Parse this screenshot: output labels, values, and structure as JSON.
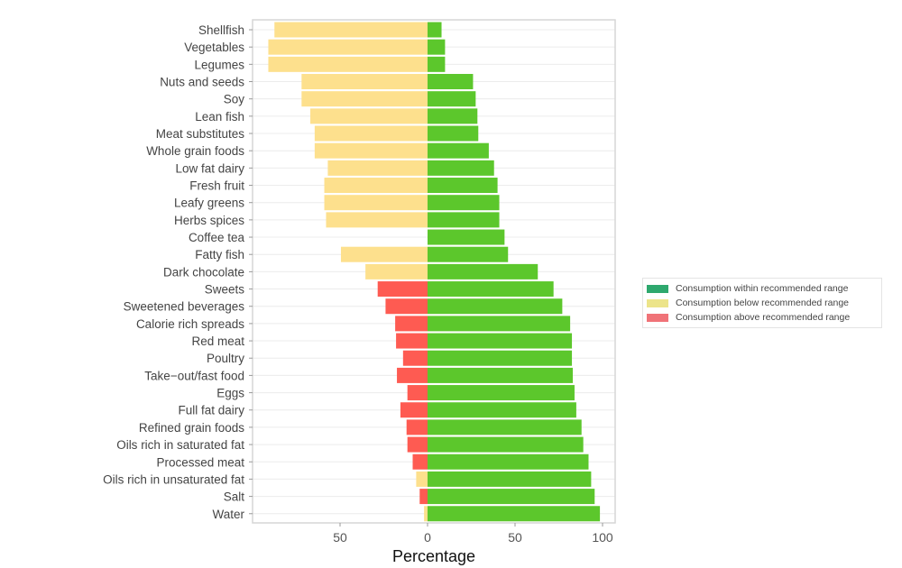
{
  "chart_data": {
    "type": "bar",
    "orientation": "horizontal",
    "stacking": "diverging",
    "title": "",
    "xlabel": "Percentage",
    "ylabel": "",
    "xlim": [
      -100,
      100
    ],
    "x_ticks": [
      {
        "value": -50,
        "label": "50"
      },
      {
        "value": 0,
        "label": "0"
      },
      {
        "value": 50,
        "label": "50"
      },
      {
        "value": 100,
        "label": "100"
      }
    ],
    "grid": "horizontal",
    "legend_position": "right",
    "categories": [
      "Shellfish",
      "Vegetables",
      "Legumes",
      "Nuts and seeds",
      "Soy",
      "Lean fish",
      "Meat substitutes",
      "Whole grain foods",
      "Low fat dairy",
      "Fresh fruit",
      "Leafy greens",
      "Herbs spices",
      "Coffee tea",
      "Fatty fish",
      "Dark chocolate",
      "Sweets",
      "Sweetened beverages",
      "Calorie rich spreads",
      "Red meat",
      "Poultry",
      "Take−out/fast food",
      "Eggs",
      "Full fat dairy",
      "Refined grain foods",
      "Oils rich in saturated fat",
      "Processed meat",
      "Oils rich in unsaturated fat",
      "Salt",
      "Water"
    ],
    "series": [
      {
        "name": "Consumption within recommended range",
        "color": "#5cc72c",
        "legend_color": "#2ea86e",
        "side": "right",
        "values": [
          8,
          10,
          10,
          26,
          27.5,
          28.5,
          29,
          35,
          38,
          40,
          41,
          41,
          44,
          46,
          63,
          72,
          77,
          81.5,
          82.5,
          82.5,
          83,
          84,
          85,
          88,
          89,
          92,
          93.5,
          95.5,
          98.5
        ]
      },
      {
        "name": "Consumption below recommended range",
        "color": "#fde08d",
        "legend_color": "#ece48a",
        "side": "left",
        "values": [
          87.5,
          91,
          91,
          72,
          72,
          67,
          64.5,
          64.5,
          57,
          59,
          59,
          58,
          0,
          49.5,
          35.5,
          0,
          0,
          0,
          0,
          0,
          0,
          0,
          0,
          0,
          0,
          0,
          6.5,
          0,
          2
        ]
      },
      {
        "name": "Consumption above recommended range",
        "color": "#fe5b52",
        "legend_color": "#f07378",
        "side": "left",
        "values": [
          0,
          0,
          0,
          0,
          0,
          0,
          0,
          0,
          0,
          0,
          0,
          0,
          0,
          0,
          0,
          28.5,
          24,
          18.5,
          18,
          14,
          17.5,
          11.5,
          15.5,
          12,
          11.5,
          8.5,
          0,
          4.5,
          0
        ]
      }
    ]
  }
}
